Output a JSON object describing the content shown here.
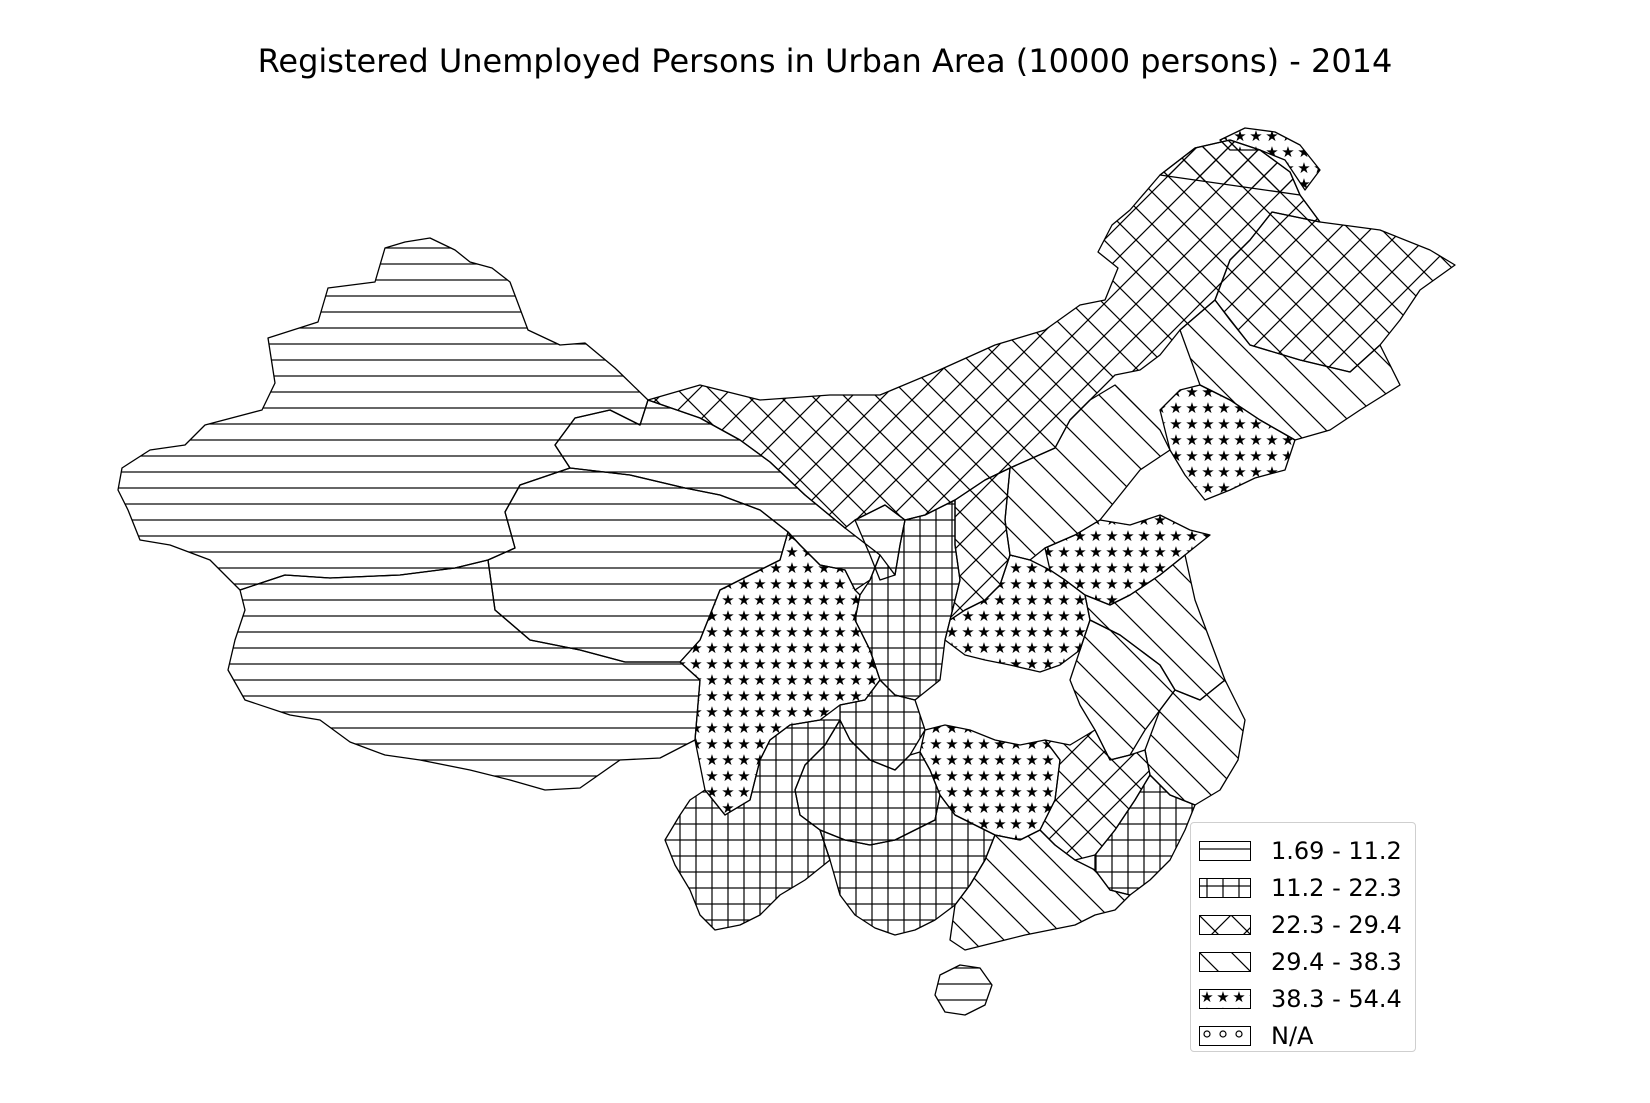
{
  "title": "Registered Unemployed Persons in Urban Area (10000 persons) - 2014",
  "legend": {
    "items": [
      {
        "label": "1.69 - 11.2",
        "pattern": "hlines"
      },
      {
        "label": "11.2 - 22.3",
        "pattern": "grid"
      },
      {
        "label": "22.3 - 29.4",
        "pattern": "diamond"
      },
      {
        "label": "29.4 - 38.3",
        "pattern": "diag"
      },
      {
        "label": "38.3 - 54.4",
        "pattern": "stars"
      },
      {
        "label": "N/A",
        "pattern": "circles"
      }
    ]
  },
  "regions": [
    {
      "name": "Xinjiang",
      "class": "1.69 - 11.2"
    },
    {
      "name": "Tibet",
      "class": "1.69 - 11.2"
    },
    {
      "name": "Qinghai",
      "class": "1.69 - 11.2"
    },
    {
      "name": "Gansu",
      "class": "1.69 - 11.2"
    },
    {
      "name": "Ningxia",
      "class": "1.69 - 11.2"
    },
    {
      "name": "Hainan",
      "class": "1.69 - 11.2"
    },
    {
      "name": "Shaanxi",
      "class": "11.2 - 22.3"
    },
    {
      "name": "Yunnan",
      "class": "11.2 - 22.3"
    },
    {
      "name": "Guizhou",
      "class": "11.2 - 22.3"
    },
    {
      "name": "Chongqing",
      "class": "11.2 - 22.3"
    },
    {
      "name": "Fujian",
      "class": "11.2 - 22.3"
    },
    {
      "name": "Inner Mongolia",
      "class": "22.3 - 29.4"
    },
    {
      "name": "Heilongjiang",
      "class": "22.3 - 29.4"
    },
    {
      "name": "Shanxi",
      "class": "22.3 - 29.4"
    },
    {
      "name": "Jiangxi",
      "class": "22.3 - 29.4"
    },
    {
      "name": "Jilin",
      "class": "29.4 - 38.3"
    },
    {
      "name": "Hebei",
      "class": "29.4 - 38.3"
    },
    {
      "name": "Anhui",
      "class": "29.4 - 38.3"
    },
    {
      "name": "Jiangsu",
      "class": "29.4 - 38.3"
    },
    {
      "name": "Zhejiang",
      "class": "29.4 - 38.3"
    },
    {
      "name": "Guangdong",
      "class": "29.4 - 38.3"
    },
    {
      "name": "Guangxi",
      "class": "11.2 - 22.3"
    },
    {
      "name": "Liaoning",
      "class": "38.3 - 54.4"
    },
    {
      "name": "Shandong",
      "class": "38.3 - 54.4"
    },
    {
      "name": "Henan",
      "class": "38.3 - 54.4"
    },
    {
      "name": "Sichuan",
      "class": "38.3 - 54.4"
    },
    {
      "name": "Hunan",
      "class": "38.3 - 54.4"
    },
    {
      "name": "Northeast tip",
      "class": "38.3 - 54.4"
    }
  ]
}
